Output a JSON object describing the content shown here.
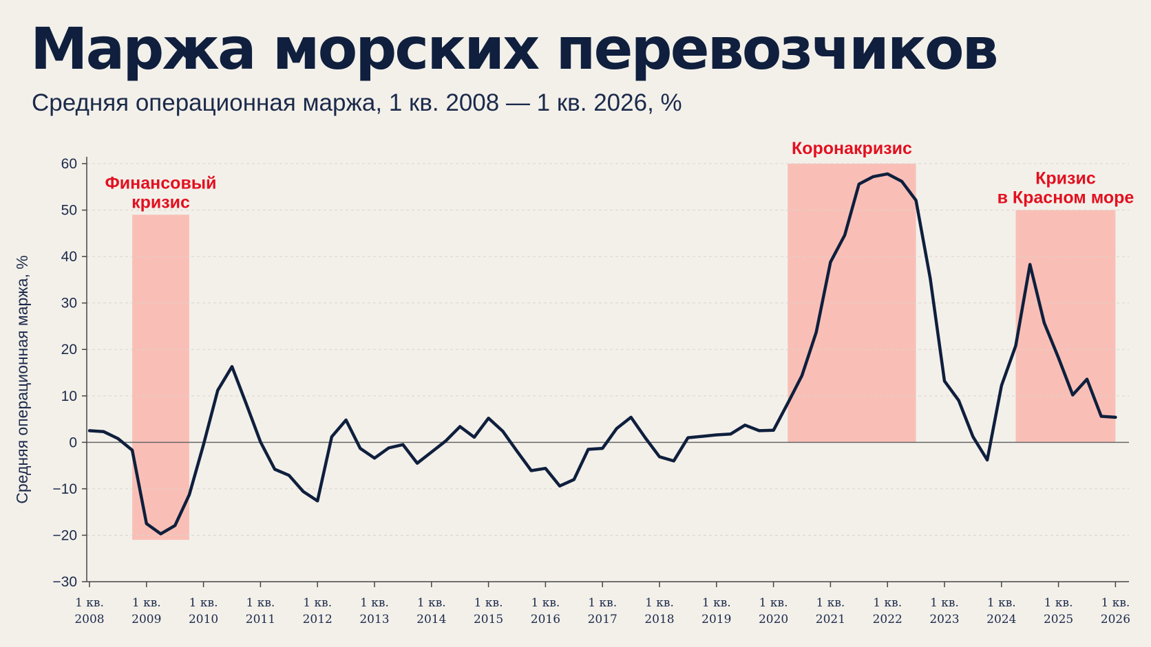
{
  "header": {
    "title": "Маржа морских перевозчиков",
    "subtitle": "Средняя операционная маржа, 1 кв. 2008 — 1 кв. 2026, %"
  },
  "colors": {
    "background": "#f3f0ea",
    "line": "#0f1f3d",
    "shade": "#f9b9b0",
    "annotation": "#e3101f"
  },
  "chart_data": {
    "type": "line",
    "ylabel": "Средняя операционная маржа, %",
    "ylim": [
      -30,
      60
    ],
    "yticks": [
      60,
      50,
      40,
      30,
      20,
      10,
      0,
      -10,
      -20,
      -30
    ],
    "grid": true,
    "x_unit": "квартал",
    "xticks": [
      {
        "line1": "1 кв.",
        "line2": "2008",
        "year": 2008
      },
      {
        "line1": "1 кв.",
        "line2": "2009",
        "year": 2009
      },
      {
        "line1": "1 кв.",
        "line2": "2010",
        "year": 2010
      },
      {
        "line1": "1 кв.",
        "line2": "2011",
        "year": 2011
      },
      {
        "line1": "1 кв.",
        "line2": "2012",
        "year": 2012
      },
      {
        "line1": "1 кв.",
        "line2": "2013",
        "year": 2013
      },
      {
        "line1": "1 кв.",
        "line2": "2014",
        "year": 2014
      },
      {
        "line1": "1 кв.",
        "line2": "2015",
        "year": 2015
      },
      {
        "line1": "1 кв.",
        "line2": "2016",
        "year": 2016
      },
      {
        "line1": "1 кв.",
        "line2": "2017",
        "year": 2017
      },
      {
        "line1": "1 кв.",
        "line2": "2018",
        "year": 2018
      },
      {
        "line1": "1 кв.",
        "line2": "2019",
        "year": 2019
      },
      {
        "line1": "1 кв.",
        "line2": "2020",
        "year": 2020
      },
      {
        "line1": "1 кв.",
        "line2": "2021",
        "year": 2021
      },
      {
        "line1": "1 кв.",
        "line2": "2022",
        "year": 2022
      },
      {
        "line1": "1 кв.",
        "line2": "2023",
        "year": 2023
      },
      {
        "line1": "1 кв.",
        "line2": "2024",
        "year": 2024
      },
      {
        "line1": "1 кв.",
        "line2": "2025",
        "year": 2025
      },
      {
        "line1": "1 кв.",
        "line2": "2026",
        "year": 2026
      }
    ],
    "series": [
      {
        "points": [
          [
            "2008 Q1",
            2.5
          ],
          [
            "2008 Q2",
            2.3
          ],
          [
            "2008 Q3",
            0.8
          ],
          [
            "2008 Q4",
            -1.7
          ],
          [
            "2009 Q1",
            -17.5
          ],
          [
            "2009 Q2",
            -19.7
          ],
          [
            "2009 Q3",
            -17.9
          ],
          [
            "2009 Q4",
            -11.3
          ],
          [
            "2010 Q1",
            -0.5
          ],
          [
            "2010 Q2",
            11.2
          ],
          [
            "2010 Q3",
            16.3
          ],
          [
            "2010 Q4",
            8.3
          ],
          [
            "2011 Q1",
            0.1
          ],
          [
            "2011 Q2",
            -5.8
          ],
          [
            "2011 Q3",
            -7.1
          ],
          [
            "2011 Q4",
            -10.6
          ],
          [
            "2012 Q1",
            -12.6
          ],
          [
            "2012 Q2",
            1.2
          ],
          [
            "2012 Q3",
            4.8
          ],
          [
            "2012 Q4",
            -1.3
          ],
          [
            "2013 Q1",
            -3.4
          ],
          [
            "2013 Q2",
            -1.2
          ],
          [
            "2013 Q3",
            -0.5
          ],
          [
            "2013 Q4",
            -4.5
          ],
          [
            "2014 Q1",
            -2.1
          ],
          [
            "2014 Q2",
            0.3
          ],
          [
            "2014 Q3",
            3.4
          ],
          [
            "2014 Q4",
            1.1
          ],
          [
            "2015 Q1",
            5.2
          ],
          [
            "2015 Q2",
            2.4
          ],
          [
            "2015 Q3",
            -1.9
          ],
          [
            "2015 Q4",
            -6.1
          ],
          [
            "2016 Q1",
            -5.6
          ],
          [
            "2016 Q2",
            -9.4
          ],
          [
            "2016 Q3",
            -8.0
          ],
          [
            "2016 Q4",
            -1.5
          ],
          [
            "2017 Q1",
            -1.3
          ],
          [
            "2017 Q2",
            3.0
          ],
          [
            "2017 Q3",
            5.4
          ],
          [
            "2017 Q4",
            1.0
          ],
          [
            "2018 Q1",
            -3.1
          ],
          [
            "2018 Q2",
            -4.0
          ],
          [
            "2018 Q3",
            1.0
          ],
          [
            "2018 Q4",
            1.3
          ],
          [
            "2019 Q1",
            1.6
          ],
          [
            "2019 Q2",
            1.8
          ],
          [
            "2019 Q3",
            3.7
          ],
          [
            "2019 Q4",
            2.5
          ],
          [
            "2020 Q1",
            2.6
          ],
          [
            "2020 Q2",
            8.4
          ],
          [
            "2020 Q3",
            14.4
          ],
          [
            "2020 Q4",
            23.7
          ],
          [
            "2021 Q1",
            38.8
          ],
          [
            "2021 Q2",
            44.6
          ],
          [
            "2021 Q3",
            55.6
          ],
          [
            "2021 Q4",
            57.2
          ],
          [
            "2022 Q1",
            57.8
          ],
          [
            "2022 Q2",
            56.2
          ],
          [
            "2022 Q3",
            52.1
          ],
          [
            "2022 Q4",
            35.3
          ],
          [
            "2023 Q1",
            13.2
          ],
          [
            "2023 Q2",
            9.0
          ],
          [
            "2023 Q3",
            1.2
          ],
          [
            "2023 Q4",
            -3.8
          ],
          [
            "2024 Q1",
            12.2
          ],
          [
            "2024 Q2",
            20.8
          ],
          [
            "2024 Q3",
            38.3
          ],
          [
            "2024 Q4",
            25.7
          ],
          [
            "2025 Q1",
            18.2
          ],
          [
            "2025 Q2",
            10.2
          ],
          [
            "2025 Q3",
            13.6
          ],
          [
            "2025 Q4",
            5.6
          ],
          [
            "2026 Q1",
            5.4
          ]
        ]
      }
    ],
    "shaded_periods": [
      {
        "line1": "Финансовый",
        "line2": "кризис",
        "from": "2008 Q4",
        "to": "2009 Q4",
        "ymin": -21,
        "ymax": 49
      },
      {
        "line1": "Коронакризис",
        "line2": "",
        "from": "2020 Q2",
        "to": "2022 Q3",
        "ymin": 0,
        "ymax": 60
      },
      {
        "line1": "Кризис",
        "line2": "в Красном море",
        "from": "2024 Q2",
        "to": "2026 Q1",
        "ymin": 0,
        "ymax": 50
      }
    ]
  }
}
